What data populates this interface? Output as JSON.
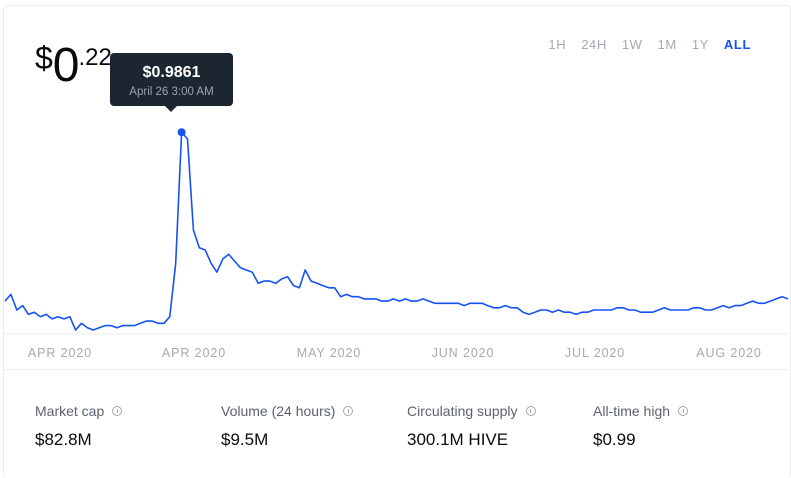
{
  "price": {
    "currency": "$",
    "integer": "0",
    "decimal": ".22"
  },
  "ranges": [
    "1H",
    "24H",
    "1W",
    "1M",
    "1Y",
    "ALL"
  ],
  "active_range": "ALL",
  "tooltip": {
    "value": "$0.9861",
    "date": "April 26 3:00 AM"
  },
  "colors": {
    "line": "#1652f0",
    "tooltip_bg": "#1b2630",
    "accent": "#1652f0"
  },
  "stats": [
    {
      "label": "Market cap",
      "value": "$82.8M"
    },
    {
      "label": "Volume (24 hours)",
      "value": "$9.5M"
    },
    {
      "label": "Circulating supply",
      "value": "300.1M HIVE"
    },
    {
      "label": "All-time high",
      "value": "$0.99"
    }
  ],
  "chart_data": {
    "type": "line",
    "title": "",
    "xlabel": "",
    "ylabel": "",
    "ylim": [
      0.1,
      1.0
    ],
    "grid": false,
    "x_tick_labels": [
      "APR 2020",
      "APR 2020",
      "MAY 2020",
      "JUN 2020",
      "JUL 2020",
      "AUG 2020"
    ],
    "series": [
      {
        "values": [
          0.23,
          0.26,
          0.19,
          0.21,
          0.17,
          0.18,
          0.16,
          0.17,
          0.15,
          0.16,
          0.15,
          0.16,
          0.1,
          0.13,
          0.11,
          0.1,
          0.11,
          0.12,
          0.12,
          0.11,
          0.12,
          0.12,
          0.12,
          0.13,
          0.14,
          0.14,
          0.13,
          0.13,
          0.16,
          0.4,
          0.99,
          0.96,
          0.55,
          0.47,
          0.46,
          0.4,
          0.36,
          0.42,
          0.44,
          0.41,
          0.38,
          0.37,
          0.36,
          0.31,
          0.32,
          0.32,
          0.31,
          0.33,
          0.34,
          0.3,
          0.29,
          0.37,
          0.32,
          0.31,
          0.3,
          0.29,
          0.29,
          0.25,
          0.26,
          0.25,
          0.25,
          0.24,
          0.24,
          0.24,
          0.23,
          0.23,
          0.24,
          0.23,
          0.24,
          0.23,
          0.23,
          0.24,
          0.23,
          0.22,
          0.22,
          0.22,
          0.22,
          0.22,
          0.21,
          0.22,
          0.22,
          0.22,
          0.21,
          0.2,
          0.2,
          0.21,
          0.2,
          0.2,
          0.18,
          0.17,
          0.18,
          0.19,
          0.19,
          0.18,
          0.19,
          0.18,
          0.18,
          0.17,
          0.18,
          0.18,
          0.19,
          0.19,
          0.19,
          0.19,
          0.2,
          0.2,
          0.19,
          0.19,
          0.18,
          0.18,
          0.18,
          0.19,
          0.2,
          0.19,
          0.19,
          0.19,
          0.19,
          0.2,
          0.2,
          0.19,
          0.19,
          0.2,
          0.21,
          0.2,
          0.21,
          0.21,
          0.22,
          0.23,
          0.22,
          0.22,
          0.23,
          0.24,
          0.25,
          0.24
        ]
      }
    ],
    "highlight": {
      "index": 30,
      "value": 0.9861,
      "label": "April 26 3:00 AM"
    }
  }
}
